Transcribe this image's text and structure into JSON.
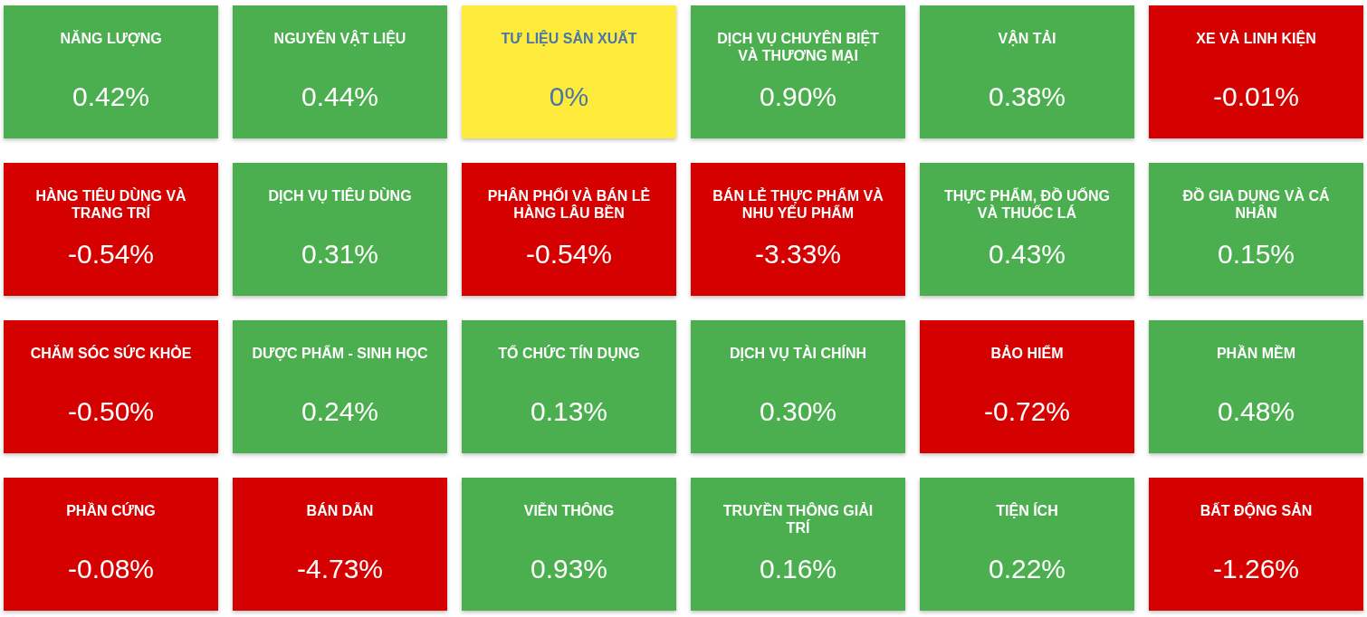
{
  "chart_data": {
    "type": "other",
    "categories": [
      "NĂNG LƯỢNG",
      "NGUYÊN VẬT LIỆU",
      "TƯ LIỆU SẢN XUẤT",
      "DỊCH VỤ CHUYÊN BIỆT VÀ THƯƠNG MẠI",
      "VẬN TẢI",
      "XE VÀ LINH KIỆN",
      "HÀNG TIÊU DÙNG VÀ TRANG TRÍ",
      "DỊCH VỤ TIÊU DÙNG",
      "PHÂN PHỐI VÀ BÁN LẺ HÀNG LÂU BỀN",
      "BÁN LẺ THỰC PHẨM VÀ NHU YẾU PHẨM",
      "THỰC PHẨM, ĐỒ UỐNG VÀ THUỐC LÁ",
      "ĐỒ GIA DỤNG VÀ CÁ NHÂN",
      "CHĂM SÓC SỨC KHỎE",
      "DƯỢC PHẨM - SINH HỌC",
      "TỔ CHỨC TÍN DỤNG",
      "DỊCH VỤ TÀI CHÍNH",
      "BẢO HIỂM",
      "PHẦN MỀM",
      "PHẦN CỨNG",
      "BÁN DẪN",
      "VIỄN THÔNG",
      "TRUYỀN THÔNG GIẢI TRÍ",
      "TIỆN ÍCH",
      "BẤT ĐỘNG SẢN"
    ],
    "values": [
      0.42,
      0.44,
      0,
      0.9,
      0.38,
      -0.01,
      -0.54,
      0.31,
      -0.54,
      -3.33,
      0.43,
      0.15,
      -0.5,
      0.24,
      0.13,
      0.3,
      -0.72,
      0.48,
      -0.08,
      -4.73,
      0.93,
      0.16,
      0.22,
      -1.26
    ],
    "value_labels": [
      "0.42%",
      "0.44%",
      "0%",
      "0.90%",
      "0.38%",
      "-0.01%",
      "-0.54%",
      "0.31%",
      "-0.54%",
      "-3.33%",
      "0.43%",
      "0.15%",
      "-0.50%",
      "0.24%",
      "0.13%",
      "0.30%",
      "-0.72%",
      "0.48%",
      "-0.08%",
      "-4.73%",
      "0.93%",
      "0.16%",
      "0.22%",
      "-1.26%"
    ]
  }
}
